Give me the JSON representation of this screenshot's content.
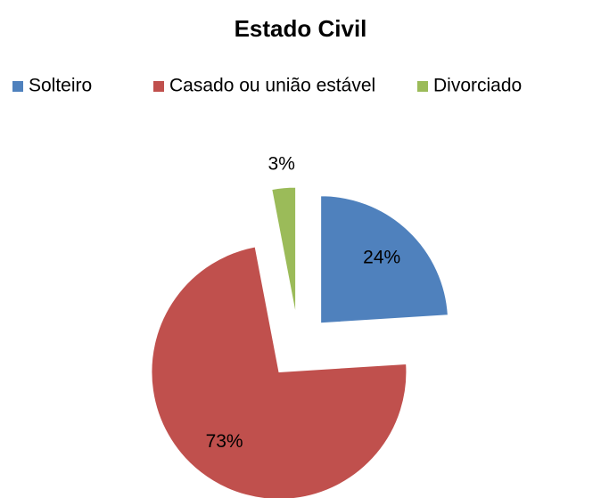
{
  "chart_data": {
    "type": "pie",
    "title": "Estado Civil",
    "categories": [
      "Solteiro",
      "Casado ou união estável",
      "Divorciado"
    ],
    "values": [
      24,
      73,
      3
    ],
    "value_labels": [
      "24%",
      "73%",
      "3%"
    ],
    "colors": [
      "#4f81bd",
      "#c0504d",
      "#9bbb59"
    ],
    "legend": "top"
  }
}
